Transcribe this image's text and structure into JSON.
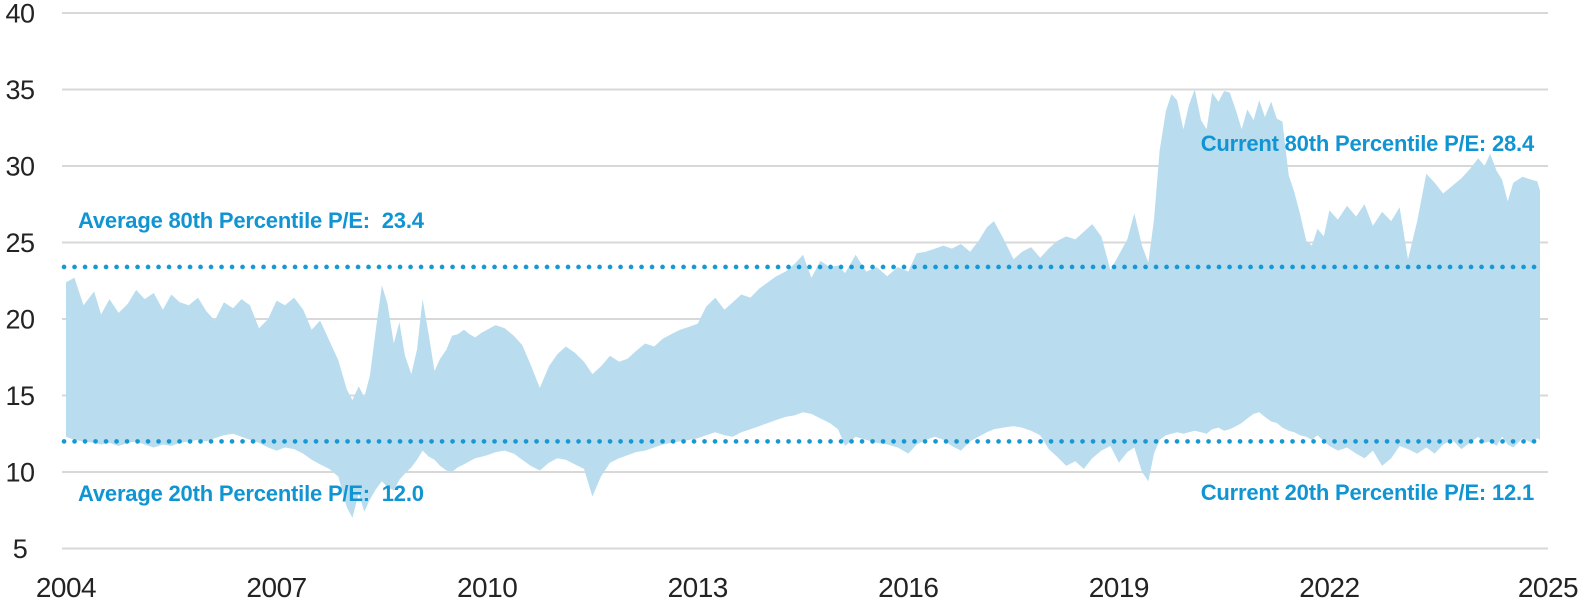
{
  "page": {
    "background": "#FFFFFF"
  },
  "chart_data": {
    "type": "area",
    "title": "",
    "description": "Band between 20th and 80th percentile P/E ratios, 2004-2025",
    "grid": true,
    "legend": "none",
    "x_range": [
      2004,
      2025
    ],
    "ylim": [
      5,
      40
    ],
    "x_ticks": [
      "2004",
      "2007",
      "2010",
      "2013",
      "2016",
      "2019",
      "2022",
      "2025"
    ],
    "x_tick_values": [
      2004,
      2007,
      2010,
      2013,
      2016,
      2019,
      2022,
      2025
    ],
    "y_ticks": [
      "40",
      "35",
      "30",
      "25",
      "20",
      "15",
      "10",
      "5"
    ],
    "y_tick_values": [
      40,
      35,
      30,
      25,
      20,
      15,
      10,
      5
    ],
    "x": [
      2004.0,
      2004.12,
      2004.25,
      2004.4,
      2004.5,
      2004.62,
      2004.75,
      2004.88,
      2005.0,
      2005.12,
      2005.25,
      2005.38,
      2005.5,
      2005.62,
      2005.75,
      2005.88,
      2006.0,
      2006.12,
      2006.25,
      2006.38,
      2006.5,
      2006.62,
      2006.75,
      2006.88,
      2007.0,
      2007.12,
      2007.25,
      2007.38,
      2007.5,
      2007.62,
      2007.75,
      2007.88,
      2008.0,
      2008.08,
      2008.17,
      2008.25,
      2008.33,
      2008.42,
      2008.5,
      2008.58,
      2008.67,
      2008.75,
      2008.83,
      2008.92,
      2009.0,
      2009.08,
      2009.17,
      2009.25,
      2009.33,
      2009.42,
      2009.5,
      2009.58,
      2009.67,
      2009.75,
      2009.83,
      2009.92,
      2010.0,
      2010.12,
      2010.25,
      2010.38,
      2010.5,
      2010.62,
      2010.75,
      2010.88,
      2011.0,
      2011.12,
      2011.25,
      2011.38,
      2011.5,
      2011.62,
      2011.75,
      2011.88,
      2012.0,
      2012.12,
      2012.25,
      2012.38,
      2012.5,
      2012.62,
      2012.75,
      2012.88,
      2013.0,
      2013.12,
      2013.25,
      2013.38,
      2013.5,
      2013.62,
      2013.75,
      2013.88,
      2014.0,
      2014.12,
      2014.25,
      2014.38,
      2014.5,
      2014.62,
      2014.75,
      2014.88,
      2015.0,
      2015.1,
      2015.25,
      2015.4,
      2015.55,
      2015.7,
      2015.85,
      2016.0,
      2016.12,
      2016.25,
      2016.38,
      2016.5,
      2016.62,
      2016.75,
      2016.88,
      2017.0,
      2017.12,
      2017.22,
      2017.35,
      2017.5,
      2017.62,
      2017.75,
      2017.88,
      2018.0,
      2018.12,
      2018.25,
      2018.38,
      2018.5,
      2018.62,
      2018.75,
      2018.88,
      2019.0,
      2019.12,
      2019.22,
      2019.33,
      2019.42,
      2019.5,
      2019.58,
      2019.67,
      2019.75,
      2019.83,
      2019.92,
      2020.0,
      2020.08,
      2020.17,
      2020.25,
      2020.33,
      2020.42,
      2020.5,
      2020.58,
      2020.67,
      2020.75,
      2020.83,
      2020.92,
      2021.0,
      2021.08,
      2021.17,
      2021.25,
      2021.33,
      2021.42,
      2021.5,
      2021.58,
      2021.67,
      2021.75,
      2021.83,
      2021.92,
      2022.0,
      2022.12,
      2022.25,
      2022.38,
      2022.5,
      2022.62,
      2022.75,
      2022.88,
      2023.0,
      2023.12,
      2023.25,
      2023.38,
      2023.5,
      2023.62,
      2023.75,
      2023.88,
      2024.0,
      2024.12,
      2024.21,
      2024.29,
      2024.38,
      2024.46,
      2024.54,
      2024.62,
      2024.75,
      2024.88,
      2024.96,
      2025.0
    ],
    "series": [
      {
        "name": "80th Percentile P/E",
        "values": [
          22.4,
          22.7,
          20.9,
          21.8,
          20.3,
          21.3,
          20.4,
          21.0,
          21.9,
          21.3,
          21.7,
          20.6,
          21.6,
          21.1,
          20.9,
          21.4,
          20.5,
          19.9,
          21.1,
          20.7,
          21.3,
          20.9,
          19.4,
          20.0,
          21.2,
          20.9,
          21.4,
          20.6,
          19.3,
          19.9,
          18.6,
          17.3,
          15.4,
          14.7,
          15.6,
          14.9,
          16.3,
          19.5,
          22.2,
          21.0,
          18.4,
          19.8,
          17.6,
          16.4,
          18.0,
          21.3,
          18.9,
          16.6,
          17.4,
          18.0,
          18.9,
          19.0,
          19.3,
          19.0,
          18.8,
          19.1,
          19.3,
          19.6,
          19.4,
          18.9,
          18.3,
          17.0,
          15.5,
          16.9,
          17.7,
          18.2,
          17.8,
          17.2,
          16.4,
          16.9,
          17.6,
          17.2,
          17.4,
          17.9,
          18.4,
          18.2,
          18.7,
          19.0,
          19.3,
          19.5,
          19.7,
          20.8,
          21.4,
          20.6,
          21.1,
          21.6,
          21.4,
          22.0,
          22.4,
          22.8,
          23.1,
          23.6,
          24.2,
          22.7,
          23.8,
          23.4,
          23.5,
          23.0,
          24.2,
          23.1,
          23.4,
          22.8,
          23.4,
          23.1,
          24.3,
          24.4,
          24.6,
          24.8,
          24.6,
          24.9,
          24.4,
          25.1,
          26.0,
          26.4,
          25.3,
          23.9,
          24.4,
          24.7,
          24.0,
          24.6,
          25.1,
          25.4,
          25.2,
          25.7,
          26.2,
          25.4,
          23.2,
          24.2,
          25.2,
          26.9,
          24.8,
          23.7,
          26.5,
          31.0,
          33.6,
          34.7,
          34.3,
          32.4,
          34.0,
          35.0,
          33.0,
          32.4,
          34.8,
          34.2,
          34.9,
          34.8,
          33.6,
          32.4,
          33.7,
          33.0,
          34.3,
          33.2,
          34.2,
          33.1,
          32.9,
          29.4,
          28.3,
          26.9,
          25.1,
          24.8,
          25.9,
          25.4,
          27.1,
          26.5,
          27.4,
          26.7,
          27.5,
          26.1,
          27.0,
          26.4,
          27.3,
          23.9,
          26.4,
          29.5,
          28.9,
          28.2,
          28.7,
          29.2,
          29.8,
          30.5,
          30.0,
          30.8,
          29.7,
          29.1,
          27.7,
          28.9,
          29.3,
          29.1,
          29.0,
          28.4
        ]
      },
      {
        "name": "20th Percentile P/E",
        "values": [
          12.3,
          12.1,
          12.0,
          11.9,
          11.8,
          11.9,
          11.7,
          11.9,
          12.0,
          11.8,
          11.6,
          11.8,
          11.7,
          11.9,
          12.0,
          12.1,
          12.0,
          12.2,
          12.4,
          12.5,
          12.3,
          12.1,
          11.9,
          11.6,
          11.4,
          11.6,
          11.5,
          11.2,
          10.8,
          10.5,
          10.2,
          9.7,
          7.7,
          7.0,
          8.6,
          7.4,
          8.2,
          8.9,
          9.4,
          9.0,
          8.8,
          9.5,
          9.9,
          10.3,
          10.8,
          11.4,
          11.0,
          10.8,
          10.4,
          10.1,
          10.0,
          10.3,
          10.5,
          10.7,
          10.9,
          11.0,
          11.1,
          11.3,
          11.4,
          11.2,
          10.8,
          10.4,
          10.1,
          10.6,
          10.9,
          10.8,
          10.5,
          10.2,
          8.4,
          9.7,
          10.6,
          10.9,
          11.1,
          11.3,
          11.4,
          11.6,
          11.8,
          11.9,
          12.0,
          12.1,
          12.2,
          12.4,
          12.6,
          12.4,
          12.3,
          12.6,
          12.8,
          13.0,
          13.2,
          13.4,
          13.6,
          13.7,
          13.9,
          13.8,
          13.5,
          13.2,
          12.8,
          11.7,
          12.3,
          12.1,
          11.9,
          11.8,
          11.6,
          11.2,
          11.8,
          12.1,
          12.3,
          12.1,
          11.7,
          11.4,
          12.0,
          12.3,
          12.6,
          12.8,
          12.9,
          13.0,
          12.9,
          12.7,
          12.4,
          11.5,
          11.0,
          10.4,
          10.7,
          10.2,
          10.9,
          11.4,
          11.7,
          10.6,
          11.3,
          11.6,
          10.0,
          9.4,
          11.2,
          12.1,
          12.4,
          12.5,
          12.6,
          12.5,
          12.6,
          12.7,
          12.6,
          12.5,
          12.8,
          12.9,
          12.7,
          12.8,
          13.0,
          13.2,
          13.5,
          13.8,
          13.9,
          13.6,
          13.3,
          13.2,
          12.9,
          12.7,
          12.6,
          12.4,
          12.3,
          12.1,
          12.4,
          12.0,
          11.7,
          11.4,
          11.6,
          11.2,
          10.9,
          11.4,
          10.4,
          10.9,
          11.7,
          11.5,
          11.2,
          11.6,
          11.2,
          11.8,
          12.1,
          11.5,
          11.9,
          12.3,
          11.9,
          12.0,
          11.7,
          12.3,
          11.8,
          11.6,
          12.2,
          11.9,
          12.2,
          12.1
        ]
      }
    ],
    "reference_lines": [
      {
        "name": "Average 80th Percentile P/E",
        "value": 23.4,
        "style": "dotted"
      },
      {
        "name": "Average 20th Percentile P/E",
        "value": 12.0,
        "style": "dotted"
      }
    ],
    "annotations": {
      "average_80th": "Average 80th Percentile P/E:  23.4",
      "current_80th": "Current 80th Percentile P/E: 28.4",
      "average_20th": "Average 20th Percentile P/E:  12.0",
      "current_20th": "Current 20th Percentile P/E: 12.1"
    },
    "colors": {
      "band_fill": "#B9DDEF",
      "dotted_line": "#1598D4",
      "annotation_text": "#1095D2",
      "gridline": "#D8D8D8",
      "axis_text": "#232323"
    }
  }
}
